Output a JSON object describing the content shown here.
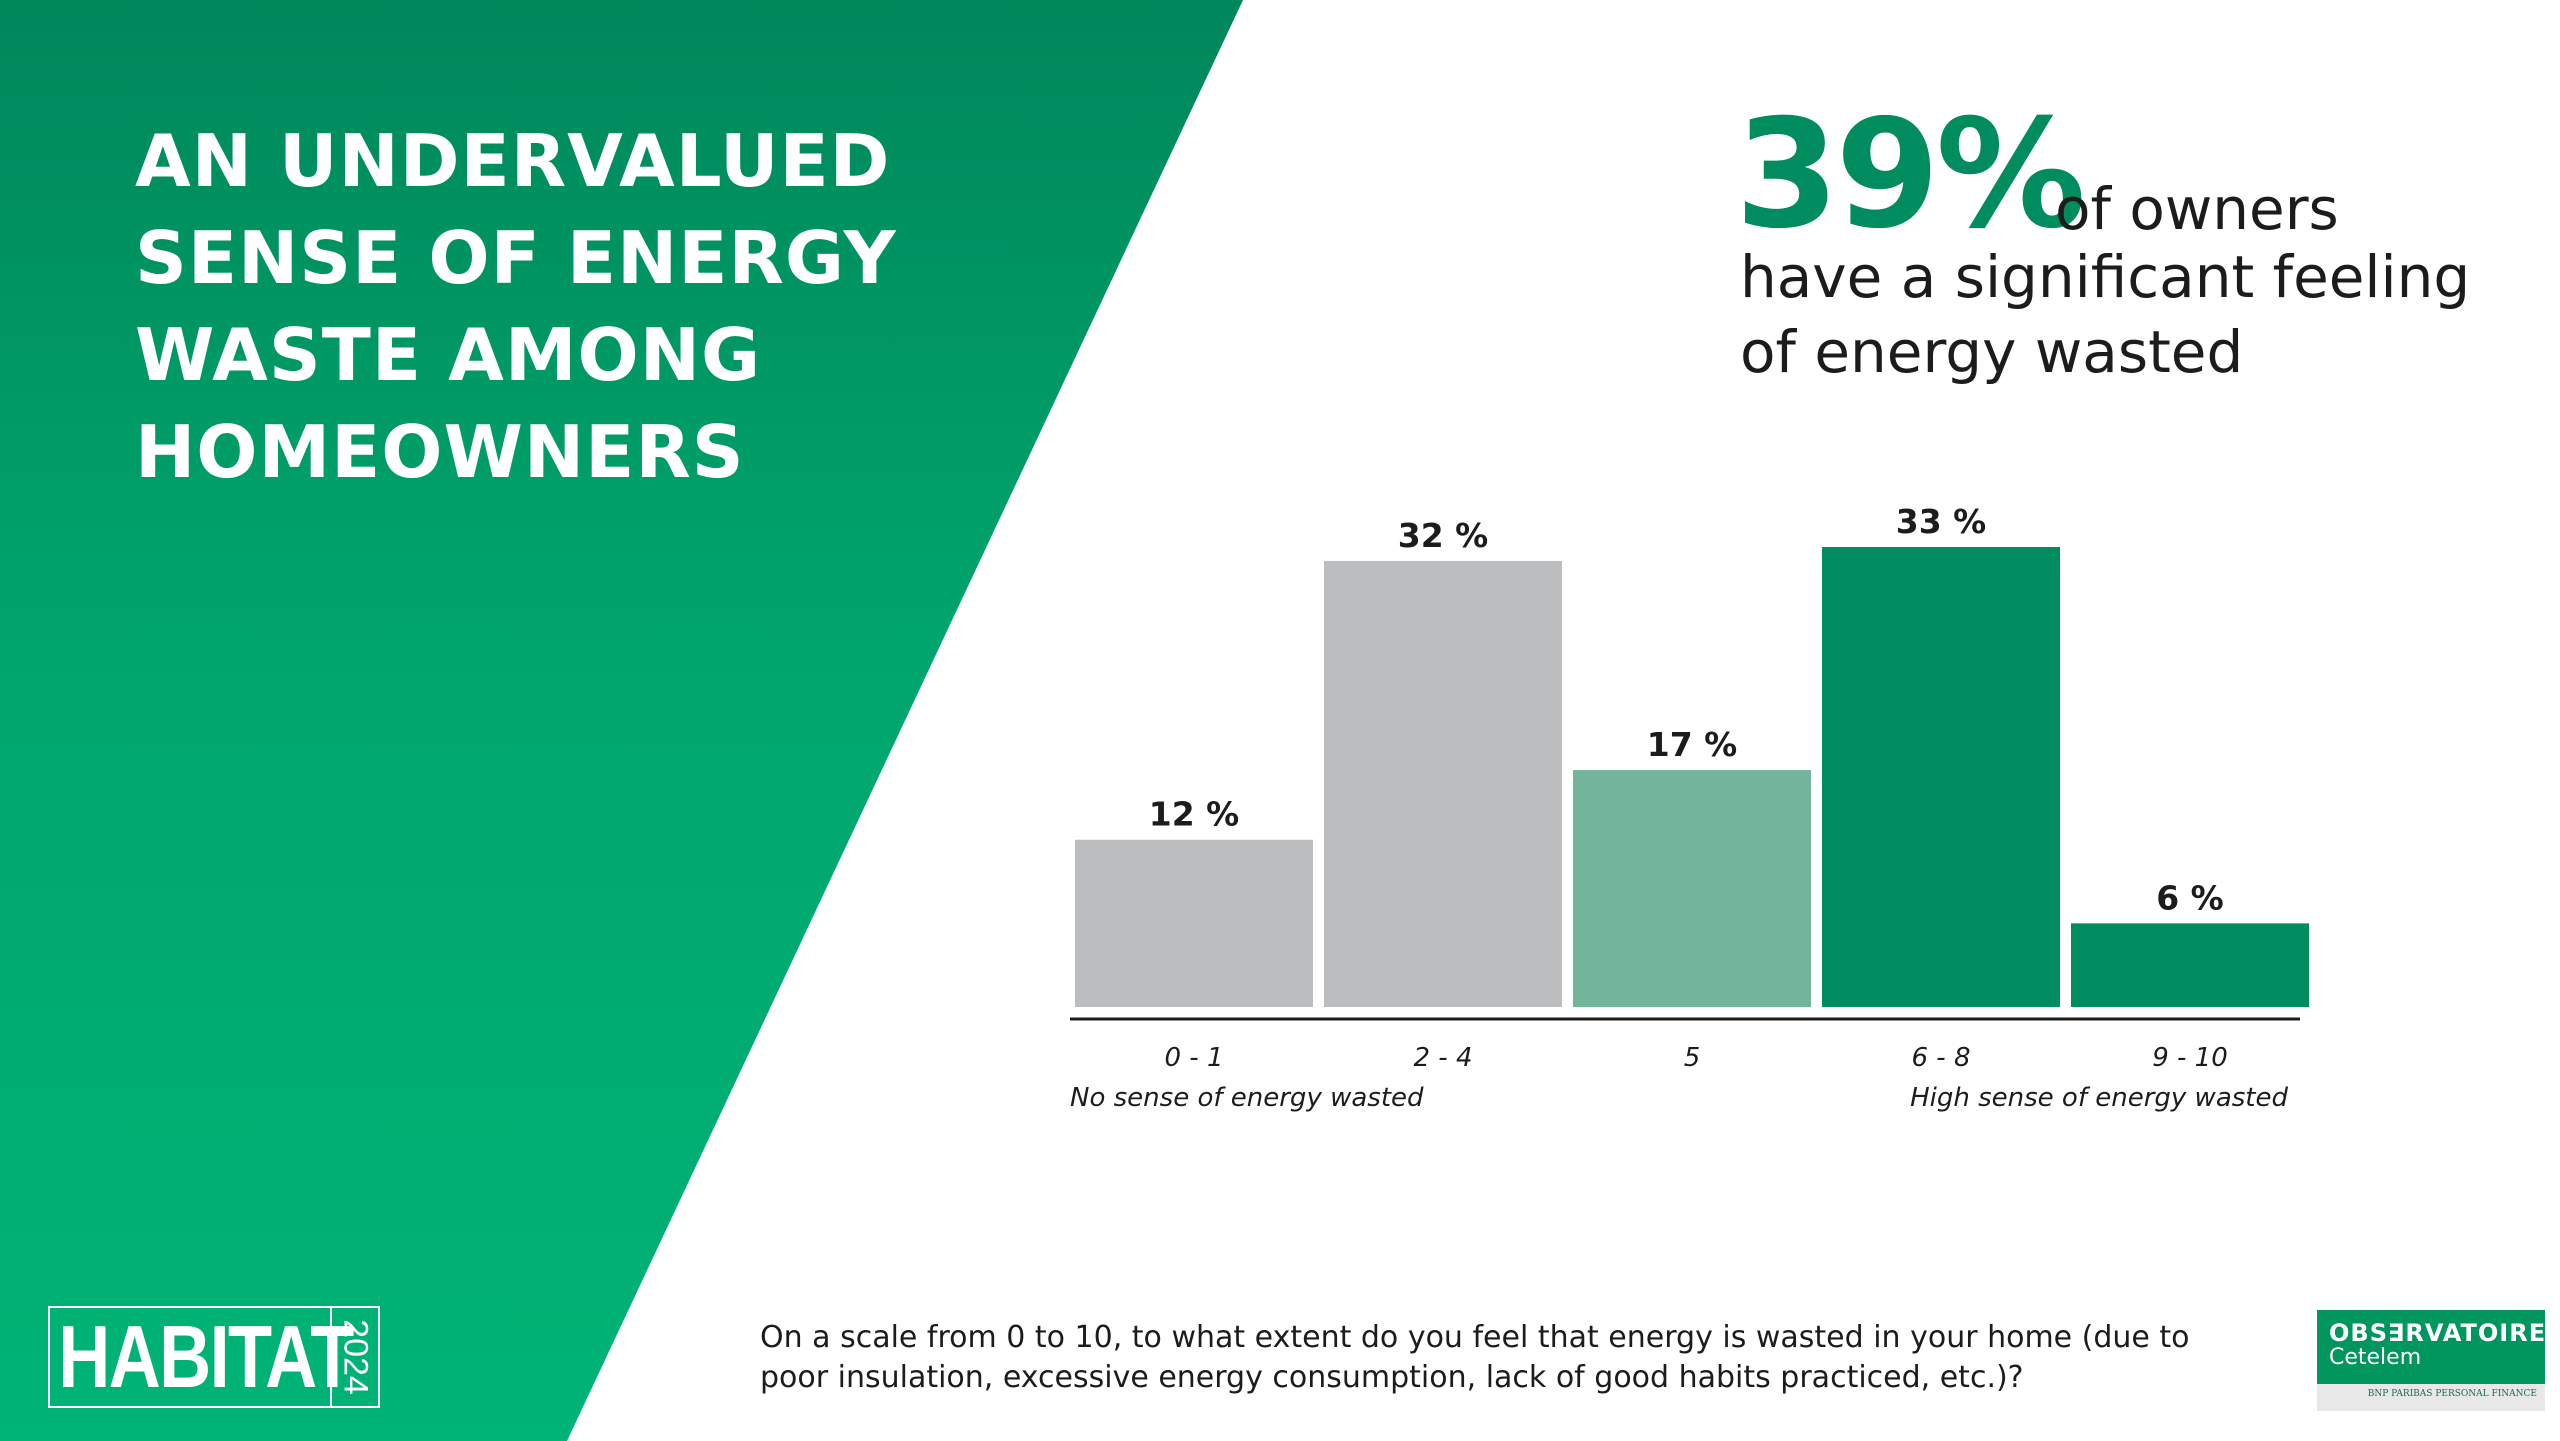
{
  "headline": {
    "lines": [
      "AN UNDERVALUED",
      "SENSE OF ENERGY",
      "WASTE AMONG",
      "HOMEOWNERS"
    ]
  },
  "key_stat": {
    "value": "39%",
    "line1": "of owners",
    "line2": "have a significant feeling",
    "line3": "of energy wasted"
  },
  "chart_data": {
    "type": "bar",
    "title": "",
    "categories": [
      "0 - 1",
      "2 - 4",
      "5",
      "6 - 8",
      "9 - 10"
    ],
    "values": [
      12,
      32,
      17,
      33,
      6
    ],
    "value_labels": [
      "12 %",
      "32 %",
      "17 %",
      "33 %",
      "6 %"
    ],
    "bar_colors": [
      "#bbbdbf",
      "#bbbdbf",
      "#72b59b",
      "#008c5e",
      "#008c5e"
    ],
    "xlabel": "",
    "ylabel": "",
    "ylim": [
      0,
      33
    ],
    "grid": false,
    "left_label": "No sense of energy wasted",
    "right_label": "High sense of energy wasted"
  },
  "question": "On a scale from 0 to 10, to what extent do you feel that energy is wasted in your home (due to poor insulation, excessive energy consumption,  lack of good habits practiced, etc.)?",
  "habitat_logo": {
    "word": "HABITAT",
    "year": "2024"
  },
  "observatoire_logo": {
    "name": "OBS∃RVATOIRE",
    "brand": "Cetelem",
    "sub": "BNP PARIBAS PERSONAL FINANCE"
  },
  "colors": {
    "green_dark": "#008c5e",
    "green_light": "#00b074",
    "grey_bar": "#bbbdbf",
    "mid_green_bar": "#72b59b"
  }
}
